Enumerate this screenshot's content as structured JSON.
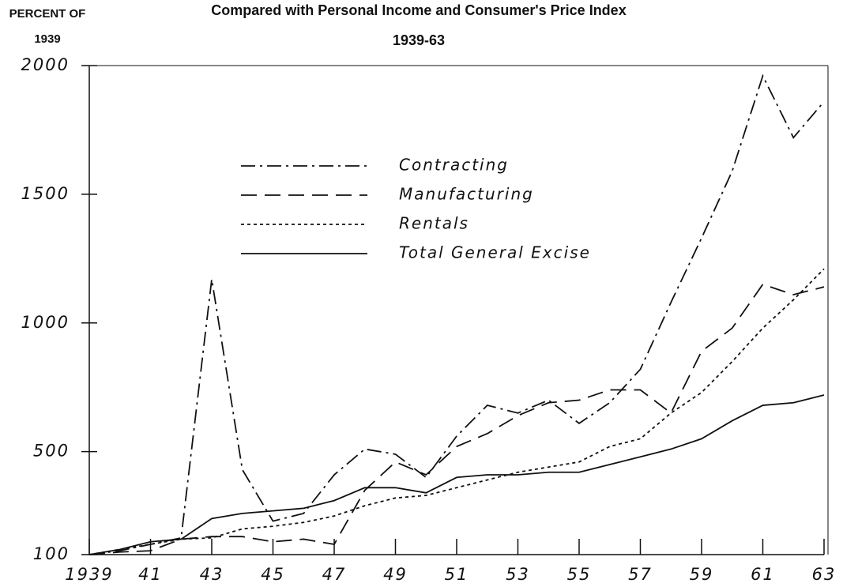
{
  "chart_data": {
    "type": "line",
    "title": "Compared with Personal Income and Consumer's Price Index",
    "subtitle": "1939-63",
    "y_label": [
      "PERCENT OF",
      "1939"
    ],
    "x": [
      1939,
      1940,
      1941,
      1942,
      1943,
      1944,
      1945,
      1946,
      1947,
      1948,
      1949,
      1950,
      1951,
      1952,
      1953,
      1954,
      1955,
      1956,
      1957,
      1958,
      1959,
      1960,
      1961,
      1962,
      1963
    ],
    "series": [
      {
        "name": "Contracting",
        "color": "#111111",
        "dash": "18 6 3 6",
        "values": [
          100,
          115,
          140,
          165,
          1170,
          430,
          230,
          260,
          410,
          510,
          490,
          400,
          560,
          680,
          650,
          700,
          610,
          690,
          820,
          1080,
          1330,
          1590,
          1960,
          1720,
          1860
        ]
      },
      {
        "name": "Manufacturing",
        "color": "#111111",
        "dash": "20 10",
        "values": [
          100,
          110,
          115,
          160,
          170,
          170,
          150,
          160,
          140,
          350,
          460,
          410,
          520,
          570,
          640,
          690,
          700,
          740,
          740,
          650,
          890,
          980,
          1150,
          1110,
          1140
        ]
      },
      {
        "name": "Rentals",
        "color": "#111111",
        "dash": "4 4",
        "values": [
          100,
          120,
          140,
          160,
          165,
          200,
          210,
          225,
          250,
          290,
          320,
          330,
          360,
          390,
          420,
          440,
          460,
          520,
          550,
          650,
          730,
          850,
          980,
          1090,
          1210
        ]
      },
      {
        "name": "Total General Excise",
        "color": "#111111",
        "dash": "none",
        "values": [
          100,
          120,
          150,
          160,
          240,
          260,
          270,
          280,
          310,
          360,
          360,
          340,
          400,
          410,
          410,
          420,
          420,
          450,
          480,
          510,
          550,
          620,
          680,
          690,
          720
        ]
      }
    ],
    "xlim": [
      1939,
      1963
    ],
    "xticks": [
      {
        "value": 1939,
        "label": "1939"
      },
      {
        "value": 1941,
        "label": "41"
      },
      {
        "value": 1943,
        "label": "43"
      },
      {
        "value": 1945,
        "label": "45"
      },
      {
        "value": 1947,
        "label": "47"
      },
      {
        "value": 1949,
        "label": "49"
      },
      {
        "value": 1951,
        "label": "51"
      },
      {
        "value": 1953,
        "label": "53"
      },
      {
        "value": 1955,
        "label": "55"
      },
      {
        "value": 1957,
        "label": "57"
      },
      {
        "value": 1959,
        "label": "59"
      },
      {
        "value": 1961,
        "label": "61"
      },
      {
        "value": 1963,
        "label": "63"
      }
    ],
    "ylim": [
      100,
      2000
    ],
    "yticks": [
      100,
      500,
      1000,
      1500,
      2000
    ],
    "grid": false,
    "legend": "upper-left"
  }
}
